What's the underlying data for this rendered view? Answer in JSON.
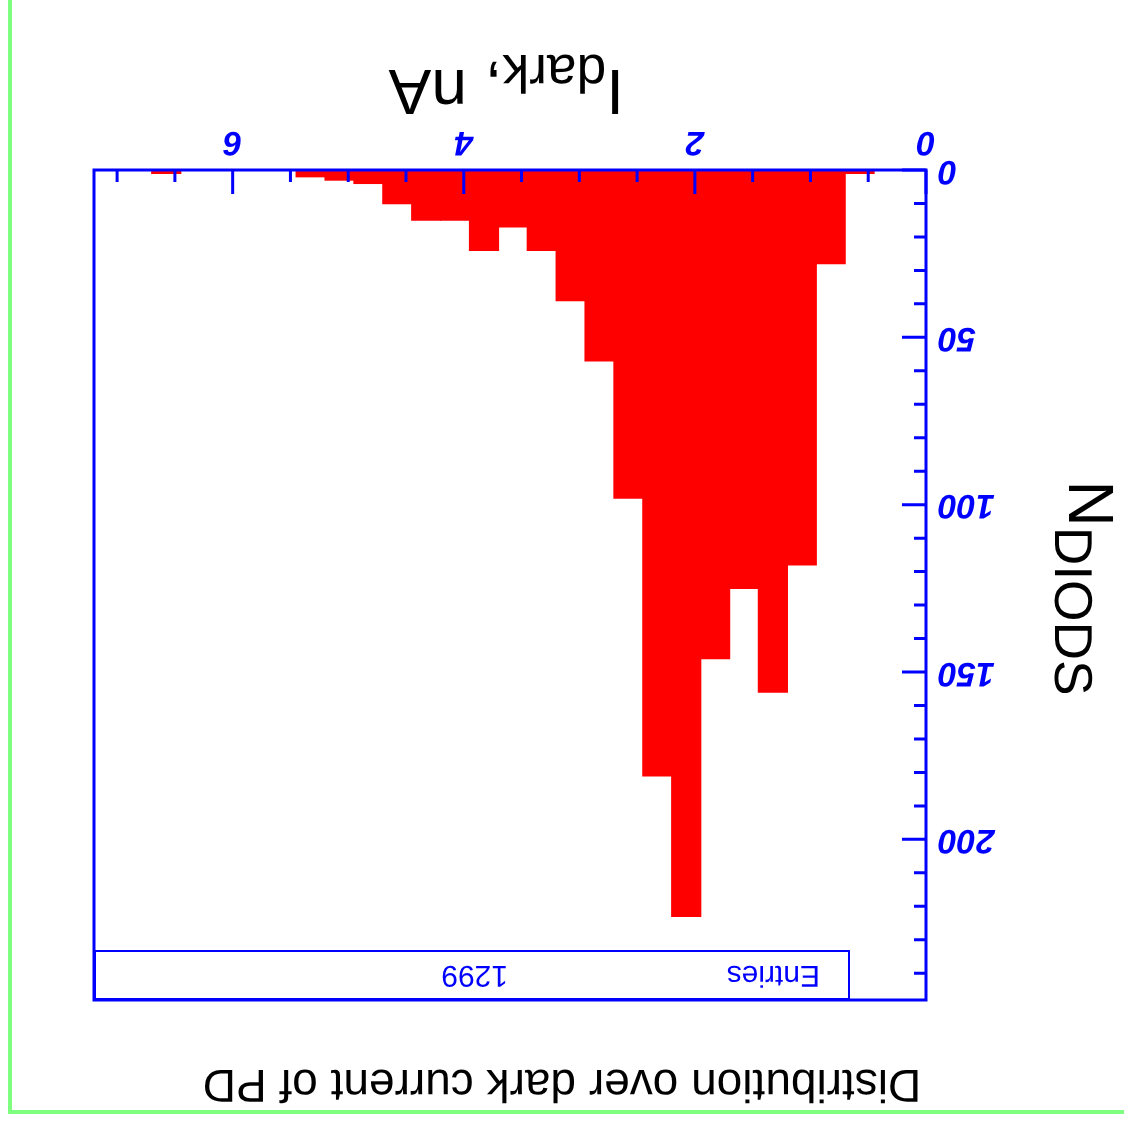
{
  "chart_data": {
    "type": "histogram",
    "title": "Distribution over dark current of PD",
    "xlabel": "I$_{dark}$, nA",
    "ylabel": "N$_{DIODS}$",
    "annotations": [
      "Entries",
      "1299"
    ],
    "bins": [
      0.45,
      0.7,
      0.95,
      1.2,
      1.45,
      1.7,
      1.95,
      2.2,
      2.45,
      2.7,
      2.95,
      3.2,
      3.45,
      3.7,
      3.95,
      4.2,
      4.45,
      4.7,
      4.95,
      5.2,
      5.45,
      5.7,
      5.95,
      6.2,
      6.45,
      6.7
    ],
    "values": [
      1,
      28,
      118,
      156,
      125,
      146,
      223,
      181,
      98,
      57,
      39,
      24,
      17,
      24,
      15,
      15,
      10,
      4,
      3,
      2,
      0,
      0,
      0,
      0,
      1
    ],
    "color": "#ff0000",
    "xlim": [
      7.2,
      0
    ],
    "xticks": [
      0,
      {
        "value": 0.5,
        "label": null
      },
      {
        "value": 1,
        "label": null
      },
      {
        "value": 1.5,
        "label": null
      },
      2,
      {
        "value": 2.5,
        "label": null
      },
      {
        "value": 3,
        "label": null
      },
      {
        "value": 3.5,
        "label": null
      },
      4,
      {
        "value": 4.5,
        "label": null
      },
      {
        "value": 5,
        "label": null
      },
      {
        "value": 5.5,
        "label": null
      },
      6,
      {
        "value": 6.5,
        "label": null
      },
      {
        "value": 7,
        "label": null
      }
    ],
    "ylim": [
      248,
      0
    ],
    "yticks": [
      0,
      {
        "value": 10,
        "label": null
      },
      {
        "value": 20,
        "label": null
      },
      {
        "value": 30,
        "label": null
      },
      {
        "value": 40,
        "label": null
      },
      50,
      {
        "value": 60,
        "label": null
      },
      {
        "value": 70,
        "label": null
      },
      {
        "value": 80,
        "label": null
      },
      {
        "value": 90,
        "label": null
      },
      100,
      {
        "value": 110,
        "label": null
      },
      {
        "value": 120,
        "label": null
      },
      {
        "value": 130,
        "label": null
      },
      {
        "value": 140,
        "label": null
      },
      150,
      {
        "value": 160,
        "label": null
      },
      {
        "value": 170,
        "label": null
      },
      {
        "value": 180,
        "label": null
      },
      {
        "value": 190,
        "label": null
      },
      200,
      {
        "value": 210,
        "label": null
      },
      {
        "value": 220,
        "label": null
      },
      {
        "value": 230,
        "label": null
      },
      {
        "value": 240,
        "label": null
      }
    ],
    "legend": false
  }
}
